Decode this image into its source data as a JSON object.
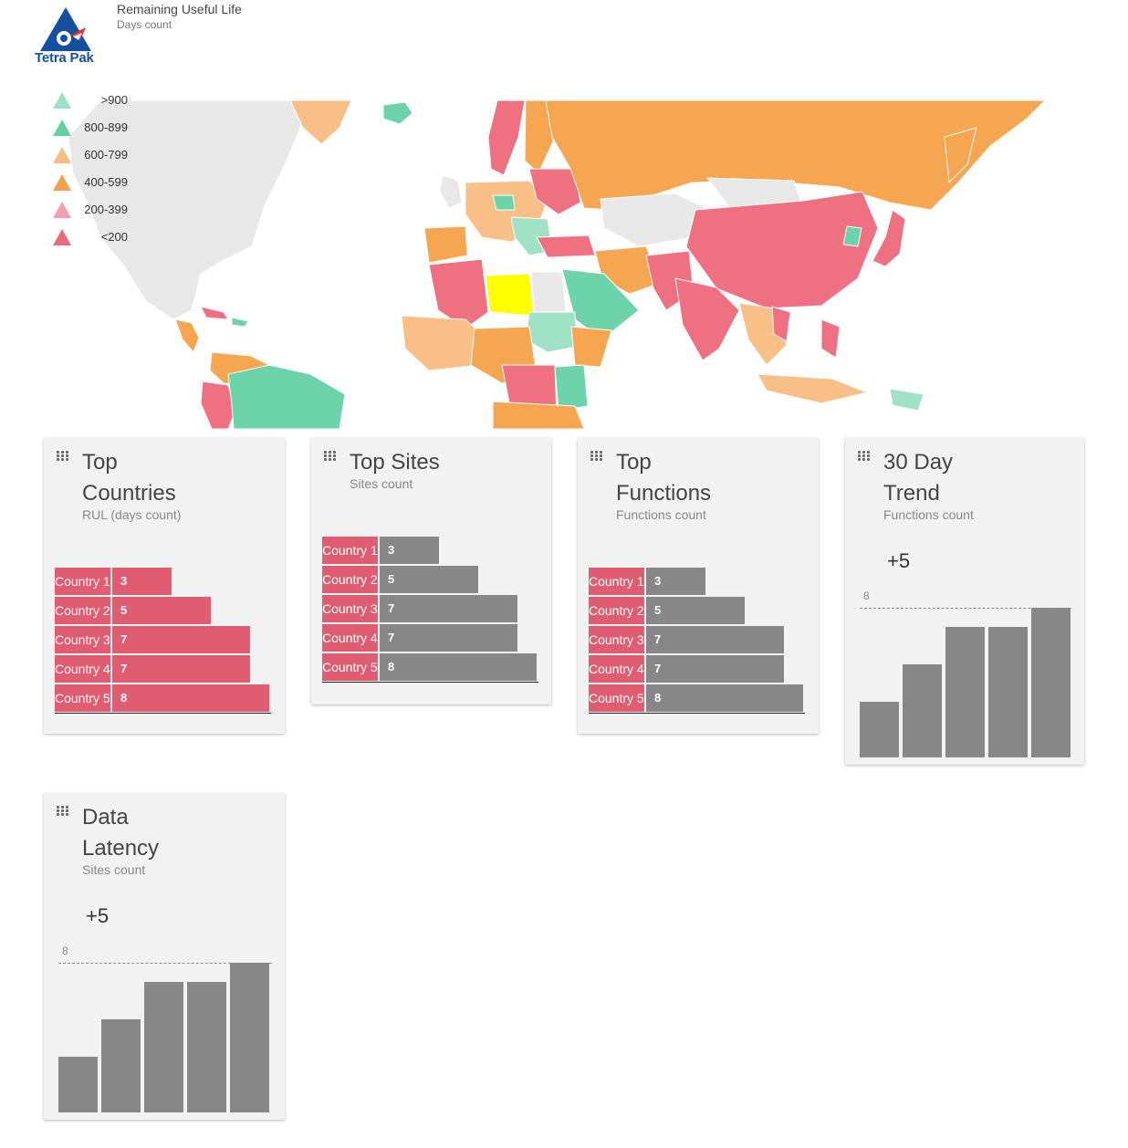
{
  "header": {
    "logo_text": "Tetra Pak",
    "title": "Remaining Useful Life",
    "subtitle": "Days count",
    "logo_colors": {
      "blue": "#1550a0",
      "red": "#e0303a"
    }
  },
  "legend": [
    {
      "label": ">900",
      "color": "#9ee2c4"
    },
    {
      "label": "800-899",
      "color": "#66cfa2"
    },
    {
      "label": "600-799",
      "color": "#f8bd82"
    },
    {
      "label": "400-599",
      "color": "#f6a04e"
    },
    {
      "label": "200-399",
      "color": "#f3a0aa"
    },
    {
      "label": "<200",
      "color": "#ea6b7a"
    }
  ],
  "map": {
    "colors": {
      "none": "#e8e8e8",
      "green": "#6dd3aa",
      "lightgreen": "#a0e2c6",
      "orange": "#f6a650",
      "lightorange": "#f8bf86",
      "red": "#ef7080",
      "highlight": "#ffff00"
    }
  },
  "cards": {
    "top_countries": {
      "title_line1": "Top",
      "title_line2": "Countries",
      "subtitle": "RUL (days count)",
      "bar_color": "#e05c70",
      "rows": [
        {
          "name": "Country 1",
          "value": 3
        },
        {
          "name": "Country 2",
          "value": 5
        },
        {
          "name": "Country 3",
          "value": 7
        },
        {
          "name": "Country 4",
          "value": 7
        },
        {
          "name": "Country 5",
          "value": 8
        }
      ]
    },
    "top_sites": {
      "title_line1": "Top Sites",
      "subtitle": "Sites count",
      "bar_color": "#878787",
      "rows": [
        {
          "name": "Country 1",
          "value": 3
        },
        {
          "name": "Country 2",
          "value": 5
        },
        {
          "name": "Country 3",
          "value": 7
        },
        {
          "name": "Country 4",
          "value": 7
        },
        {
          "name": "Country 5",
          "value": 8
        }
      ]
    },
    "top_functions": {
      "title_line1": "Top",
      "title_line2": "Functions",
      "subtitle": "Functions count",
      "bar_color": "#878787",
      "rows": [
        {
          "name": "Country 1",
          "value": 3
        },
        {
          "name": "Country 2",
          "value": 5
        },
        {
          "name": "Country 3",
          "value": 7
        },
        {
          "name": "Country 4",
          "value": 7
        },
        {
          "name": "Country 5",
          "value": 8
        }
      ]
    },
    "trend_30_day": {
      "title_line1": "30 Day",
      "title_line2": "Trend",
      "subtitle": "Functions count",
      "delta": "+5",
      "reference_label": "8",
      "reference_value": 8,
      "values": [
        3,
        5,
        7,
        7,
        8
      ]
    },
    "data_latency": {
      "title_line1": "Data",
      "title_line2": "Latency",
      "subtitle": "Sites count",
      "delta": "+5",
      "reference_label": "8",
      "reference_value": 8,
      "values": [
        3,
        5,
        7,
        7,
        8
      ]
    }
  }
}
